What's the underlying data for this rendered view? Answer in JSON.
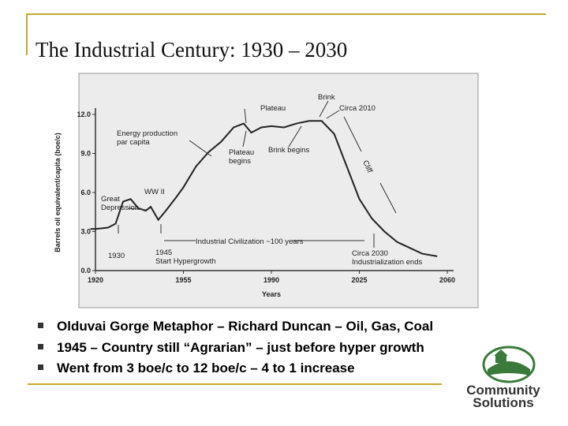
{
  "title": "The Industrial Century: 1930 – 2030",
  "bullets": [
    "Olduvai Gorge Metaphor – Richard Duncan – Oil, Gas, Coal",
    "1945 – Country still “Agrarian” – just before hyper growth",
    "Went from 3 boe/c to 12 boe/c – 4 to 1 increase"
  ],
  "logo": [
    "Community",
    "Solutions"
  ],
  "chart_data": {
    "type": "line",
    "ylabel": "Barrels oil equivalent/capita (boe/c)",
    "xlabel": "Years",
    "x": [
      1918,
      1920,
      1925,
      1928,
      1931,
      1934,
      1937,
      1940,
      1942,
      1945,
      1948,
      1952,
      1955,
      1960,
      1965,
      1970,
      1975,
      1979,
      1982,
      1986,
      1990,
      1995,
      2000,
      2005,
      2010,
      2015,
      2020,
      2025,
      2030,
      2035,
      2040,
      2050,
      2056
    ],
    "series": [
      {
        "name": "Energy production per capita",
        "color": "#222222",
        "values": [
          3.2,
          3.2,
          3.3,
          3.6,
          5.3,
          5.5,
          4.8,
          4.6,
          4.9,
          3.9,
          4.6,
          5.6,
          6.4,
          8.0,
          9.1,
          9.9,
          11.0,
          11.3,
          10.6,
          11.0,
          11.1,
          11.0,
          11.3,
          11.5,
          11.5,
          10.5,
          8.0,
          5.5,
          4.0,
          3.0,
          2.2,
          1.3,
          1.1
        ]
      }
    ],
    "xlim": [
      1920,
      2060
    ],
    "xticks": [
      1920,
      1955,
      1990,
      2025,
      2060
    ],
    "ylim": [
      0,
      12
    ],
    "yticks": [
      {
        "value": 0,
        "label": "0.0"
      },
      {
        "value": 3,
        "label": "3.0"
      },
      {
        "value": 6,
        "label": "6.0"
      },
      {
        "value": 9,
        "label": "9.0"
      },
      {
        "value": 12,
        "label": "12.0"
      }
    ],
    "annotations": [
      [
        "Energy production",
        "par capita"
      ],
      [
        "Plateau"
      ],
      [
        "Brink"
      ],
      [
        "Circa 2010"
      ],
      [
        "Plateau",
        "begins"
      ],
      [
        "Brink begins"
      ],
      [
        "Cliff"
      ],
      [
        "WW II"
      ],
      [
        "Great",
        "Depression"
      ],
      [
        "1930"
      ],
      [
        "1945",
        "Start Hypergrowth"
      ],
      [
        "Industrial Civilization ~100 years"
      ],
      [
        "Circa 2030",
        "Industrialization ends"
      ]
    ]
  }
}
